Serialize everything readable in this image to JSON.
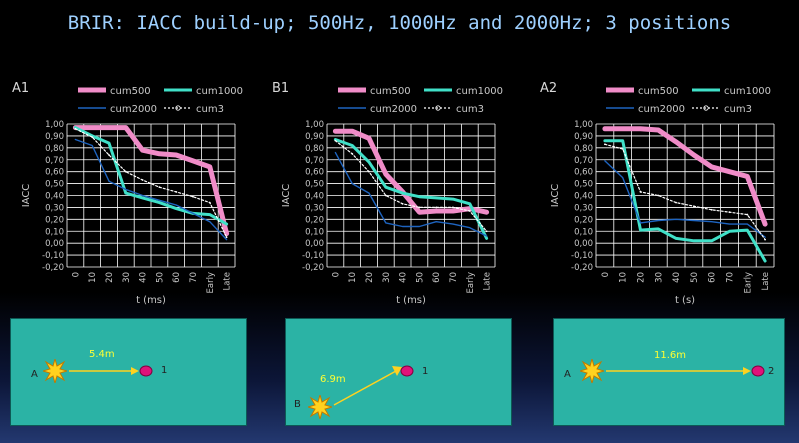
{
  "title": "BRIR: IACC build-up; 500Hz, 1000Hz and 2000Hz; 3 positions",
  "colors": {
    "cum500": "#f08cc8",
    "cum1000": "#40e0c8",
    "cum2000": "#1e64c0",
    "cum3": "#ffffff",
    "grid": "#ffffff",
    "text": "#c8c8c8",
    "scene_bg": "#2bb3a5"
  },
  "y_ticks": [
    "1,00",
    "0,90",
    "0,80",
    "0,70",
    "0,60",
    "0,50",
    "0,40",
    "0,30",
    "0,20",
    "0,10",
    "0,00",
    "-0,10",
    "-0,20"
  ],
  "x_ticks": [
    "0",
    "10",
    "20",
    "30",
    "40",
    "50",
    "60",
    "70",
    "Early",
    "Late"
  ],
  "chart_data": [
    {
      "type": "line",
      "panel_label": "A1",
      "ylabel": "IACC",
      "xlabel": "t (ms)",
      "ylim": [
        -0.2,
        1.0
      ],
      "categories": [
        "0",
        "10",
        "20",
        "30",
        "40",
        "50",
        "60",
        "70",
        "Early",
        "Late"
      ],
      "series": [
        {
          "name": "cum500",
          "values": [
            0.97,
            0.97,
            0.97,
            0.97,
            0.78,
            0.75,
            0.74,
            0.69,
            0.64,
            0.08
          ]
        },
        {
          "name": "cum1000",
          "values": [
            0.97,
            0.9,
            0.84,
            0.42,
            0.38,
            0.34,
            0.29,
            0.25,
            0.24,
            0.16
          ]
        },
        {
          "name": "cum2000",
          "values": [
            0.87,
            0.82,
            0.52,
            0.45,
            0.4,
            0.36,
            0.32,
            0.25,
            0.18,
            0.03
          ]
        },
        {
          "name": "cum3",
          "values": [
            0.96,
            0.89,
            0.74,
            0.6,
            0.53,
            0.47,
            0.43,
            0.39,
            0.34,
            0.05
          ]
        }
      ]
    },
    {
      "type": "line",
      "panel_label": "B1",
      "ylabel": "IACC",
      "xlabel": "t (ms)",
      "ylim": [
        -0.2,
        1.0
      ],
      "categories": [
        "0",
        "10",
        "20",
        "30",
        "40",
        "50",
        "60",
        "70",
        "Early",
        "Late"
      ],
      "series": [
        {
          "name": "cum500",
          "values": [
            0.94,
            0.94,
            0.88,
            0.58,
            0.43,
            0.26,
            0.27,
            0.27,
            0.29,
            0.26
          ]
        },
        {
          "name": "cum1000",
          "values": [
            0.87,
            0.82,
            0.68,
            0.47,
            0.42,
            0.39,
            0.38,
            0.37,
            0.33,
            0.04
          ]
        },
        {
          "name": "cum2000",
          "values": [
            0.76,
            0.5,
            0.42,
            0.17,
            0.14,
            0.14,
            0.18,
            0.16,
            0.13,
            0.06
          ]
        },
        {
          "name": "cum3",
          "values": [
            0.86,
            0.75,
            0.6,
            0.4,
            0.33,
            0.3,
            0.3,
            0.3,
            0.27,
            0.1
          ]
        }
      ]
    },
    {
      "type": "line",
      "panel_label": "A2",
      "ylabel": "IACC",
      "xlabel": "t (s)",
      "ylim": [
        -0.2,
        1.0
      ],
      "categories": [
        "0",
        "10",
        "20",
        "30",
        "40",
        "50",
        "60",
        "70",
        "Early",
        "Late"
      ],
      "series": [
        {
          "name": "cum500",
          "values": [
            0.96,
            0.96,
            0.96,
            0.95,
            0.85,
            0.74,
            0.64,
            0.6,
            0.56,
            0.16
          ]
        },
        {
          "name": "cum1000",
          "values": [
            0.86,
            0.86,
            0.11,
            0.12,
            0.04,
            0.02,
            0.02,
            0.1,
            0.11,
            -0.15
          ]
        },
        {
          "name": "cum2000",
          "values": [
            0.69,
            0.55,
            0.17,
            0.19,
            0.2,
            0.19,
            0.18,
            0.16,
            0.16,
            0.05
          ]
        },
        {
          "name": "cum3",
          "values": [
            0.83,
            0.79,
            0.43,
            0.4,
            0.34,
            0.31,
            0.28,
            0.26,
            0.24,
            0.03
          ]
        }
      ]
    }
  ],
  "scenes": [
    {
      "source": "A",
      "receiver": "1",
      "distance": "5.4m"
    },
    {
      "source": "B",
      "receiver": "1",
      "distance": "6.9m"
    },
    {
      "source": "A",
      "receiver": "2",
      "distance": "11.6m"
    }
  ]
}
